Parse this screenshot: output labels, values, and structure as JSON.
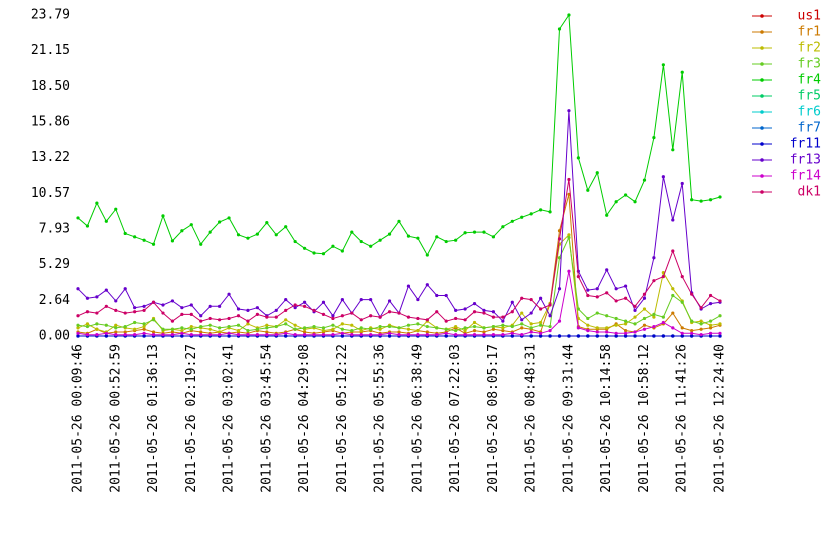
{
  "chart_data": {
    "type": "line",
    "categories": [
      "2011-05-26 00:09:46",
      null,
      null,
      null,
      "2011-05-26 00:52:59",
      null,
      null,
      null,
      "2011-05-26 01:36:13",
      null,
      null,
      null,
      "2011-05-26 02:19:27",
      null,
      null,
      null,
      "2011-05-26 03:02:41",
      null,
      null,
      null,
      "2011-05-26 03:45:54",
      null,
      null,
      null,
      "2011-05-26 04:29:08",
      null,
      null,
      null,
      "2011-05-26 05:12:22",
      null,
      null,
      null,
      "2011-05-26 05:55:36",
      null,
      null,
      null,
      "2011-05-26 06:38:49",
      null,
      null,
      null,
      "2011-05-26 07:22:03",
      null,
      null,
      null,
      "2011-05-26 08:05:17",
      null,
      null,
      null,
      "2011-05-26 08:48:31",
      null,
      null,
      null,
      "2011-05-26 09:31:44",
      null,
      null,
      null,
      "2011-05-26 10:14:58",
      null,
      null,
      null,
      "2011-05-26 10:58:12",
      null,
      null,
      null,
      "2011-05-26 11:41:26",
      null,
      null,
      null,
      "2011-05-26 12:24:40"
    ],
    "ylim": [
      0,
      23.79
    ],
    "yticks": [
      {
        "value": 0,
        "label": "0.00"
      },
      2.64,
      5.29,
      7.93,
      10.57,
      13.22,
      15.86,
      {
        "value": 18.5,
        "label": "18.50"
      },
      21.15,
      23.79
    ],
    "grid": false,
    "legend": "right",
    "series": [
      {
        "name": "us1",
        "color": "#cc0000",
        "values": [
          0,
          0,
          0,
          0,
          0,
          0,
          0,
          0,
          0,
          0,
          0,
          0,
          0,
          0,
          0,
          0,
          0,
          0,
          0,
          0,
          0,
          0,
          0,
          0,
          0,
          0,
          0,
          0,
          0,
          0,
          0,
          0,
          0,
          0,
          0,
          0,
          0,
          0,
          0,
          0,
          0,
          0,
          0,
          0,
          0,
          0,
          0,
          0,
          0,
          0,
          0,
          0,
          0,
          0,
          0,
          0,
          0,
          0,
          0,
          0,
          0,
          0,
          0,
          0,
          0,
          0,
          0,
          0,
          0
        ]
      },
      {
        "name": "fr1",
        "color": "#cc7a00",
        "values": [
          0.3,
          0.2,
          0.5,
          0.2,
          0.3,
          0.3,
          0.4,
          0.5,
          0.3,
          0.2,
          0.3,
          0.2,
          0.4,
          0.3,
          0.2,
          0.3,
          0.2,
          0.3,
          0.2,
          0.4,
          0.3,
          0.2,
          0.3,
          0.5,
          0.3,
          0.2,
          0.3,
          0.4,
          0.2,
          0.3,
          0.3,
          0.4,
          0.2,
          0.3,
          0.3,
          0.2,
          0.4,
          0.3,
          0.2,
          0.3,
          0.6,
          0.2,
          0.4,
          0.3,
          0.5,
          0.4,
          0.3,
          0.6,
          0.5,
          0.3,
          2.4,
          7.8,
          10.5,
          0.7,
          0.5,
          0.5,
          0.5,
          0.9,
          0.4,
          0.3,
          0.8,
          0.6,
          0.9,
          1.7,
          0.6,
          0.4,
          0.5,
          0.6,
          0.8
        ]
      },
      {
        "name": "fr2",
        "color": "#bcbc00",
        "values": [
          0.6,
          0.9,
          0.5,
          0.3,
          0.8,
          0.6,
          0.5,
          0.7,
          1.3,
          0.4,
          0.5,
          0.4,
          0.7,
          0.6,
          0.5,
          0.3,
          0.6,
          0.4,
          0.9,
          0.6,
          0.8,
          0.7,
          1.2,
          0.8,
          0.5,
          0.6,
          0.4,
          0.5,
          0.9,
          0.8,
          0.4,
          0.6,
          0.5,
          0.8,
          0.6,
          0.5,
          0.4,
          1.1,
          0.6,
          0.5,
          0.7,
          0.4,
          1.0,
          0.6,
          0.7,
          0.6,
          0.8,
          1.7,
          0.9,
          1.0,
          2.4,
          6.8,
          7.5,
          1.3,
          0.8,
          0.6,
          0.6,
          0.8,
          0.9,
          1.4,
          2.0,
          1.4,
          4.7,
          3.5,
          2.6,
          1.0,
          1.1,
          0.8,
          0.9
        ]
      },
      {
        "name": "fr3",
        "color": "#66cc22",
        "values": [
          0.8,
          0.7,
          0.9,
          0.8,
          0.6,
          0.7,
          1.0,
          0.9,
          1.2,
          0.5,
          0.5,
          0.6,
          0.5,
          0.7,
          0.8,
          0.6,
          0.7,
          0.8,
          0.4,
          0.5,
          0.6,
          0.7,
          0.9,
          0.5,
          0.6,
          0.7,
          0.6,
          0.8,
          0.5,
          0.4,
          0.6,
          0.5,
          0.7,
          0.7,
          0.6,
          0.8,
          0.9,
          0.7,
          0.6,
          0.5,
          0.4,
          0.6,
          0.7,
          0.6,
          0.7,
          0.8,
          0.7,
          0.9,
          0.6,
          0.8,
          0.7,
          5.8,
          7.3,
          2.0,
          1.3,
          1.7,
          1.5,
          1.3,
          1.1,
          0.9,
          1.3,
          1.6,
          1.4,
          3.0,
          2.5,
          1.1,
          0.9,
          1.1,
          1.5
        ]
      },
      {
        "name": "fr4",
        "color": "#00cc00",
        "values": [
          8.75,
          8.15,
          9.85,
          8.5,
          9.4,
          7.6,
          7.35,
          7.1,
          6.8,
          8.9,
          7.05,
          7.8,
          8.25,
          6.8,
          7.7,
          8.45,
          8.75,
          7.5,
          7.25,
          7.55,
          8.4,
          7.5,
          8.1,
          7.0,
          6.5,
          6.15,
          6.1,
          6.65,
          6.3,
          7.7,
          7.0,
          6.65,
          7.1,
          7.55,
          8.5,
          7.4,
          7.25,
          6.0,
          7.35,
          7.0,
          7.1,
          7.65,
          7.7,
          7.7,
          7.35,
          8.1,
          8.5,
          8.8,
          9.05,
          9.35,
          9.2,
          22.75,
          23.79,
          13.2,
          10.8,
          12.1,
          8.95,
          9.95,
          10.45,
          9.95,
          11.55,
          14.7,
          20.1,
          13.8,
          19.55,
          10.1,
          10.0,
          10.1,
          10.3
        ]
      },
      {
        "name": "fr5",
        "color": "#00cc66",
        "values": [
          0,
          0,
          0,
          0,
          0,
          0,
          0,
          0,
          0,
          0,
          0,
          0,
          0,
          0,
          0,
          0,
          0,
          0,
          0,
          0,
          0,
          0,
          0,
          0,
          0,
          0,
          0,
          0,
          0,
          0,
          0,
          0,
          0,
          0,
          0,
          0,
          0,
          0,
          0,
          0,
          0,
          0,
          0,
          0,
          0,
          0,
          0,
          0,
          0,
          0,
          0,
          0,
          0,
          0,
          0,
          0,
          0,
          0,
          0,
          0,
          0,
          0,
          0,
          0,
          0,
          0,
          0,
          0,
          0
        ]
      },
      {
        "name": "fr6",
        "color": "#00cccc",
        "values": [
          0,
          0,
          0,
          0,
          0,
          0,
          0,
          0,
          0,
          0,
          0,
          0,
          0,
          0,
          0,
          0,
          0,
          0,
          0,
          0,
          0,
          0,
          0,
          0,
          0,
          0,
          0,
          0,
          0,
          0,
          0,
          0,
          0,
          0,
          0,
          0,
          0,
          0,
          0,
          0,
          0,
          0,
          0,
          0,
          0,
          0,
          0,
          0,
          0,
          0,
          0,
          0,
          0,
          0,
          0,
          0,
          0,
          0,
          0,
          0,
          0,
          0,
          0,
          0,
          0,
          0,
          0,
          0,
          0
        ]
      },
      {
        "name": "fr7",
        "color": "#0066cc",
        "values": [
          0,
          0,
          0,
          0,
          0,
          0,
          0,
          0,
          0,
          0,
          0,
          0,
          0,
          0,
          0,
          0,
          0,
          0,
          0,
          0,
          0,
          0,
          0,
          0,
          0,
          0,
          0,
          0,
          0,
          0,
          0,
          0,
          0,
          0,
          0,
          0,
          0,
          0,
          0,
          0,
          0,
          0,
          0,
          0,
          0,
          0,
          0,
          0,
          0,
          0,
          0,
          0,
          0,
          0,
          0,
          0,
          0,
          0,
          0,
          0,
          0,
          0,
          0,
          0,
          0,
          0,
          0,
          0,
          0
        ]
      },
      {
        "name": "fr11",
        "color": "#0000cc",
        "values": [
          0,
          0,
          0,
          0,
          0,
          0,
          0,
          0,
          0,
          0,
          0,
          0,
          0,
          0,
          0,
          0,
          0,
          0,
          0,
          0,
          0,
          0,
          0,
          0,
          0,
          0,
          0,
          0,
          0,
          0,
          0,
          0,
          0,
          0,
          0,
          0,
          0,
          0,
          0,
          0,
          0,
          0,
          0,
          0,
          0,
          0,
          0,
          0,
          0,
          0,
          0,
          0,
          0,
          0,
          0,
          0,
          0,
          0,
          0,
          0,
          0,
          0,
          0,
          0,
          0,
          0,
          0,
          0,
          0
        ]
      },
      {
        "name": "fr13",
        "color": "#6600cc",
        "values": [
          3.5,
          2.8,
          2.9,
          3.4,
          2.6,
          3.5,
          2.1,
          2.2,
          2.5,
          2.3,
          2.6,
          2.1,
          2.3,
          1.5,
          2.2,
          2.2,
          3.1,
          2.0,
          1.9,
          2.1,
          1.5,
          1.9,
          2.7,
          2.1,
          2.5,
          1.8,
          2.5,
          1.5,
          2.7,
          1.7,
          2.7,
          2.7,
          1.4,
          2.6,
          1.7,
          3.7,
          2.7,
          3.8,
          3.0,
          3.0,
          1.9,
          2.0,
          2.4,
          1.9,
          1.8,
          1.1,
          2.5,
          1.2,
          1.7,
          2.8,
          1.5,
          3.5,
          16.7,
          4.8,
          3.4,
          3.5,
          4.9,
          3.5,
          3.7,
          1.9,
          2.8,
          5.8,
          11.8,
          8.6,
          11.3,
          3.2,
          2.0,
          2.4,
          2.5
        ]
      },
      {
        "name": "fr14",
        "color": "#cc00cc",
        "values": [
          0.2,
          0.1,
          0.1,
          0.2,
          0.1,
          0.1,
          0.1,
          0.2,
          0.1,
          0.1,
          0.1,
          0.2,
          0.1,
          0.1,
          0.1,
          0.1,
          0.2,
          0.1,
          0.1,
          0.1,
          0.1,
          0.1,
          0.2,
          0.1,
          0.1,
          0.1,
          0.1,
          0.1,
          0.2,
          0.1,
          0.1,
          0.1,
          0.1,
          0.2,
          0.1,
          0.1,
          0.1,
          0.1,
          0.1,
          0.2,
          0.1,
          0.1,
          0.1,
          0.1,
          0.1,
          0.1,
          0.2,
          0.1,
          0.3,
          0.2,
          0.4,
          1.1,
          4.8,
          0.6,
          0.4,
          0.3,
          0.3,
          0.2,
          0.2,
          0.3,
          0.5,
          0.7,
          1.0,
          0.6,
          0.2,
          0.2,
          0.1,
          0.2,
          0.2
        ]
      },
      {
        "name": "dk1",
        "color": "#cc0066",
        "values": [
          1.5,
          1.8,
          1.7,
          2.2,
          1.9,
          1.7,
          1.8,
          1.9,
          2.5,
          1.7,
          1.1,
          1.6,
          1.6,
          1.1,
          1.3,
          1.2,
          1.3,
          1.5,
          1.1,
          1.6,
          1.4,
          1.4,
          1.9,
          2.3,
          2.2,
          1.9,
          1.6,
          1.3,
          1.5,
          1.7,
          1.2,
          1.5,
          1.4,
          1.8,
          1.7,
          1.4,
          1.3,
          1.2,
          1.8,
          1.1,
          1.3,
          1.2,
          1.8,
          1.7,
          1.4,
          1.4,
          1.8,
          2.8,
          2.7,
          2.0,
          2.3,
          7.2,
          11.6,
          4.4,
          3.0,
          2.9,
          3.2,
          2.6,
          2.8,
          2.2,
          3.1,
          4.1,
          4.4,
          6.3,
          4.4,
          3.1,
          2.1,
          3.0,
          2.6
        ]
      }
    ]
  }
}
